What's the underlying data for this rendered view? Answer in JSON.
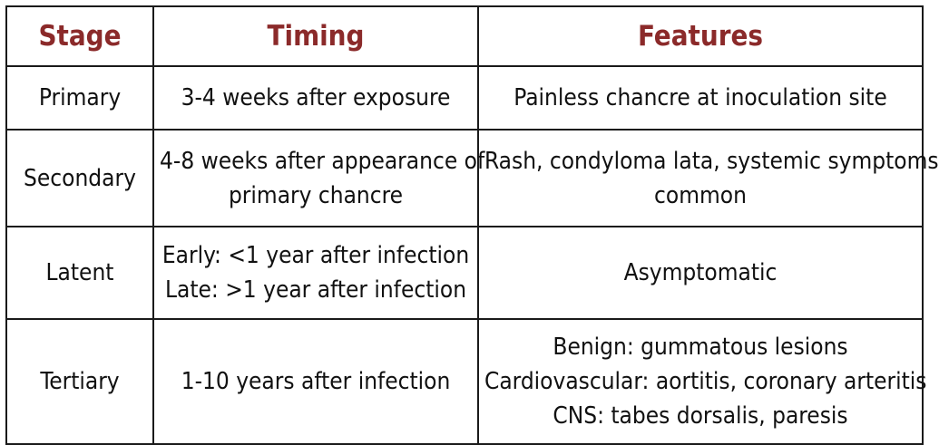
{
  "table": {
    "headers": {
      "stage": "Stage",
      "timing": "Timing",
      "features": "Features"
    },
    "header_color": "#8b2a2a",
    "rows": [
      {
        "stage": "Primary",
        "timing": [
          "3-4 weeks after exposure"
        ],
        "features": [
          "Painless chancre at inoculation site"
        ]
      },
      {
        "stage": "Secondary",
        "timing": [
          "4-8 weeks after appearance of",
          "primary chancre"
        ],
        "features": [
          "Rash, condyloma lata, systemic symptoms",
          "common"
        ]
      },
      {
        "stage": "Latent",
        "timing": [
          "Early: <1 year after infection",
          "Late: >1 year after infection"
        ],
        "features": [
          "Asymptomatic"
        ]
      },
      {
        "stage": "Tertiary",
        "timing": [
          "1-10 years after infection"
        ],
        "features": [
          "Benign: gummatous lesions",
          "Cardiovascular: aortitis, coronary arteritis",
          "CNS: tabes dorsalis, paresis"
        ]
      }
    ]
  }
}
